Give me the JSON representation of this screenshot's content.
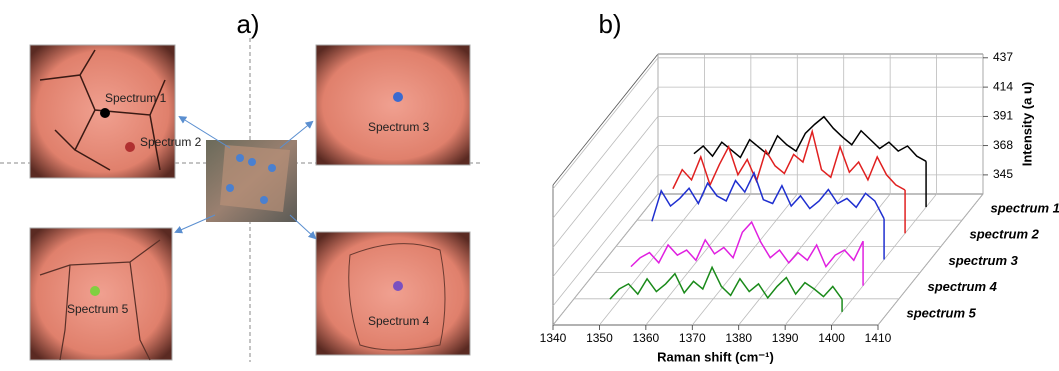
{
  "panel_a": {
    "label": "a)",
    "image_labels": [
      "Spectrum 1",
      "Spectrum 2",
      "Spectrum 3",
      "Spectrum 4",
      "Spectrum 5"
    ]
  },
  "panel_b": {
    "label": "b)"
  },
  "chart_data": {
    "type": "waterfall",
    "x_label": "Raman shift (cm⁻¹)",
    "y_label": "Intensity (a u)",
    "x": [
      1350,
      1352,
      1354,
      1356,
      1358,
      1360,
      1362,
      1364,
      1366,
      1368,
      1370,
      1372,
      1374,
      1376,
      1378,
      1380,
      1382,
      1384,
      1386,
      1388,
      1390,
      1392,
      1394,
      1396,
      1398,
      1400
    ],
    "xlim": [
      1340,
      1410
    ],
    "xticks": [
      1340,
      1350,
      1360,
      1370,
      1380,
      1390,
      1400,
      1410
    ],
    "ylim": [
      330,
      440
    ],
    "yticks": [
      345,
      368,
      391,
      414,
      437
    ],
    "grid": true,
    "series": [
      {
        "name": "spectrum 1",
        "color": "#000000",
        "values": [
          372,
          378,
          370,
          381,
          375,
          369,
          383,
          377,
          371,
          386,
          379,
          374,
          388,
          395,
          401,
          392,
          385,
          379,
          390,
          383,
          376,
          381,
          374,
          378,
          370,
          366
        ]
      },
      {
        "name": "spectrum 2",
        "color": "#e02020",
        "values": [
          365,
          380,
          372,
          390,
          368,
          384,
          398,
          376,
          388,
          371,
          395,
          383,
          377,
          392,
          386,
          410,
          380,
          374,
          398,
          378,
          386,
          372,
          390,
          376,
          368,
          364
        ]
      },
      {
        "name": "spectrum 3",
        "color": "#1f2fd0",
        "values": [
          360,
          384,
          372,
          378,
          386,
          374,
          390,
          380,
          376,
          392,
          383,
          398,
          377,
          374,
          388,
          372,
          380,
          370,
          376,
          385,
          374,
          378,
          371,
          382,
          376,
          362
        ]
      },
      {
        "name": "spectrum 4",
        "color": "#e020e0",
        "values": [
          345,
          352,
          356,
          348,
          362,
          354,
          358,
          350,
          366,
          355,
          360,
          352,
          372,
          380,
          364,
          352,
          358,
          348,
          356,
          350,
          362,
          345,
          354,
          358,
          350,
          365
        ]
      },
      {
        "name": "spectrum 5",
        "color": "#1a8a1a",
        "values": [
          340,
          348,
          352,
          344,
          356,
          346,
          352,
          360,
          345,
          354,
          348,
          365,
          350,
          343,
          356,
          346,
          352,
          341,
          350,
          357,
          344,
          353,
          348,
          342,
          350,
          340
        ]
      }
    ]
  }
}
